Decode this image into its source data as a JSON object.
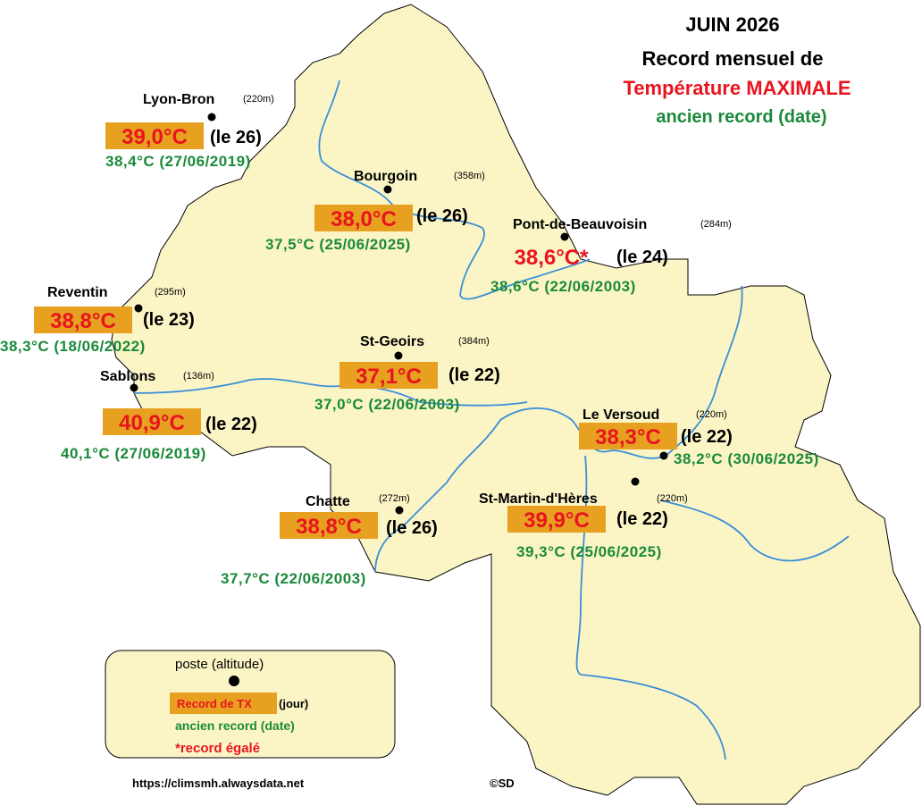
{
  "title": {
    "line1": "JUIN 2026",
    "line2": "Record mensuel de",
    "line3a": "Température",
    "line3b": "MAXIMALE",
    "line4": "ancien record (date)"
  },
  "stations": [
    {
      "name": "Lyon-Bron",
      "altitude": "(220m)",
      "record": "39,0°C",
      "day": "(le 26)",
      "old_record": "38,4°C (27/06/2019)"
    },
    {
      "name": "Bourgoin",
      "altitude": "(358m)",
      "record": "38,0°C",
      "day": "(le 26)",
      "old_record": "37,5°C (25/06/2025)"
    },
    {
      "name": "Pont-de-Beauvoisin",
      "altitude": "(284m)",
      "record": "38,6°C",
      "equal_mark": "*",
      "day": "(le 24)",
      "old_record": "38,6°C (22/06/2003)"
    },
    {
      "name": "Reventin",
      "altitude": "(295m)",
      "record": "38,8°C",
      "day": "(le 23)",
      "old_record": "38,3°C (18/06/2022)"
    },
    {
      "name": "Sablons",
      "altitude": "(136m)",
      "record": "40,9°C",
      "day": "(le 22)",
      "old_record": "40,1°C (27/06/2019)"
    },
    {
      "name": "St-Geoirs",
      "altitude": "(384m)",
      "record": "37,1°C",
      "day": "(le 22)",
      "old_record": "37,0°C (22/06/2003)"
    },
    {
      "name": "Le Versoud",
      "altitude": "(220m)",
      "record": "38,3°C",
      "day": "(le 22)",
      "old_record": "38,2°C (30/06/2025)"
    },
    {
      "name": "Chatte",
      "altitude": "(272m)",
      "record": "38,8°C",
      "day": "(le 26)",
      "old_record": "37,7°C (22/06/2003)"
    },
    {
      "name": "St-Martin-d'Hères",
      "altitude": "(220m)",
      "record": "39,9°C",
      "day": "(le 22)",
      "old_record": "39,3°C (25/06/2025)"
    }
  ],
  "legend": {
    "station": "poste (altitude)",
    "record": "Record de TX",
    "day": "(jour)",
    "old_record": "ancien record (date)",
    "equal": "*record égalé"
  },
  "footer": {
    "url": "https://climsmh.alwaysdata.net",
    "credit": "©SD"
  }
}
